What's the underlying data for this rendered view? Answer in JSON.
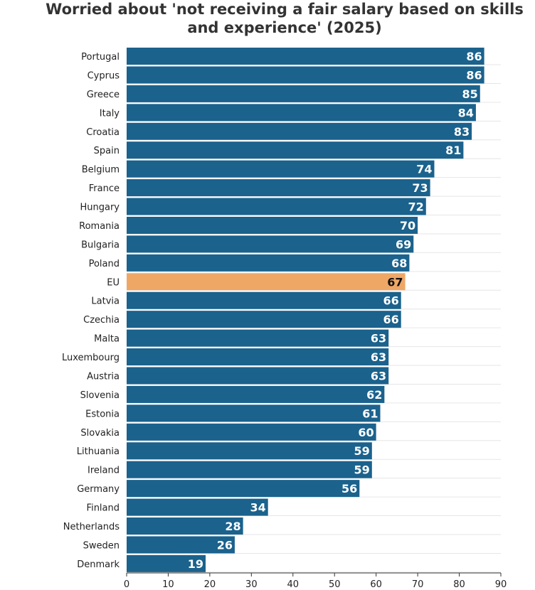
{
  "chart_data": {
    "type": "bar",
    "orientation": "horizontal",
    "title_lines": [
      "Worried about 'not receiving a fair salary based on skills",
      "and experience' (2025)"
    ],
    "categories": [
      "Portugal",
      "Cyprus",
      "Greece",
      "Italy",
      "Croatia",
      "Spain",
      "Belgium",
      "France",
      "Hungary",
      "Romania",
      "Bulgaria",
      "Poland",
      "EU",
      "Latvia",
      "Czechia",
      "Malta",
      "Luxembourg",
      "Austria",
      "Slovenia",
      "Estonia",
      "Slovakia",
      "Lithuania",
      "Ireland",
      "Germany",
      "Finland",
      "Netherlands",
      "Sweden",
      "Denmark"
    ],
    "values": [
      86,
      86,
      85,
      84,
      83,
      81,
      74,
      73,
      72,
      70,
      69,
      68,
      67,
      66,
      66,
      63,
      63,
      63,
      62,
      61,
      60,
      59,
      59,
      56,
      34,
      28,
      26,
      19
    ],
    "highlight_category": "EU",
    "xlim": [
      0,
      90
    ],
    "xticks": [
      0,
      10,
      20,
      30,
      40,
      50,
      60,
      70,
      80,
      90
    ],
    "xlabel": "",
    "ylabel": "",
    "grid": true,
    "colors": {
      "bar": "#1b628d",
      "highlight": "#efa766",
      "value_label": "#ffffff",
      "highlight_value_label": "#111111",
      "grid": "#e6e6e6",
      "axis": "#333333"
    }
  }
}
